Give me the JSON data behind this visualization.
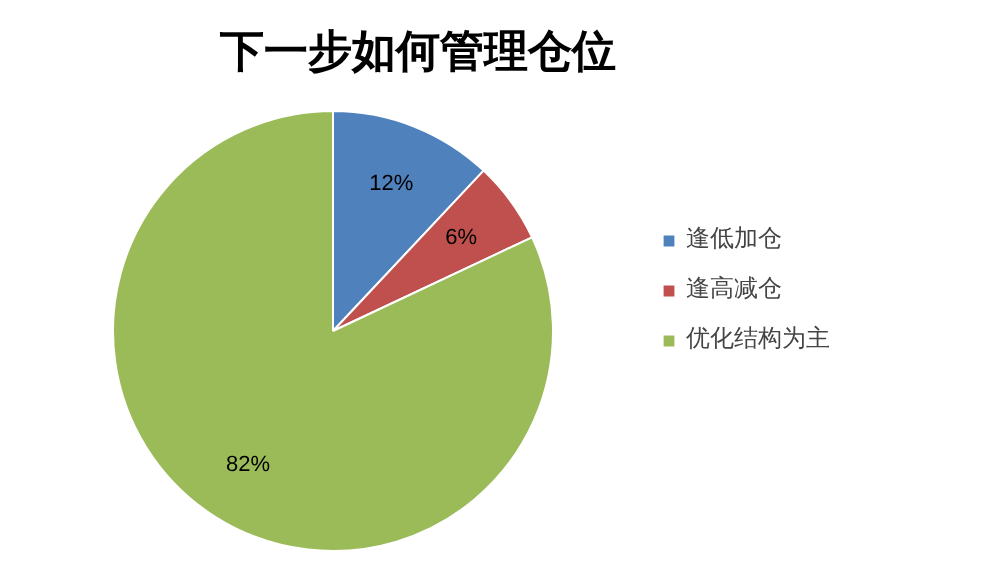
{
  "chart_data": {
    "type": "pie",
    "title": "下一步如何管理仓位",
    "categories": [
      "逢低加仓",
      "逢高减仓",
      "优化结构为主"
    ],
    "values": [
      12,
      6,
      82
    ],
    "colors": [
      "#4f81bd",
      "#c0504d",
      "#9bbb59"
    ],
    "value_labels": [
      "12%",
      "6%",
      "82%"
    ],
    "legend": "right"
  }
}
